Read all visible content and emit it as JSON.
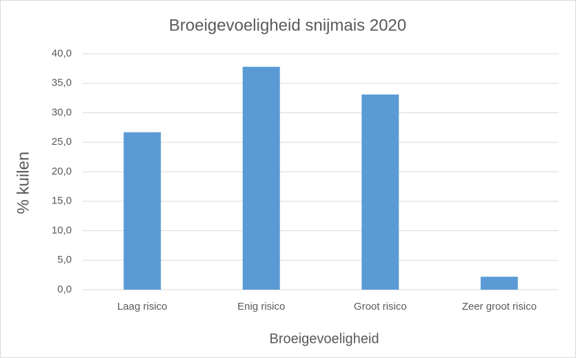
{
  "chart_data": {
    "type": "bar",
    "title": "Broeigevoeligheid snijmais 2020",
    "x_label": "Broeigevoeligheid",
    "y_label": "% kuilen",
    "categories": [
      "Laag risico",
      "Enig risico",
      "Groot risico",
      "Zeer groot risico"
    ],
    "values": [
      26.7,
      37.8,
      33.1,
      2.2
    ],
    "color": "#5b9bd5",
    "ylim": [
      0,
      40
    ],
    "yticks": [
      {
        "value": 0,
        "label": "0,0"
      },
      {
        "value": 5,
        "label": "5,0"
      },
      {
        "value": 10,
        "label": "10,0"
      },
      {
        "value": 15,
        "label": "15,0"
      },
      {
        "value": 20,
        "label": "20,0"
      },
      {
        "value": 25,
        "label": "25,0"
      },
      {
        "value": 30,
        "label": "30,0"
      },
      {
        "value": 35,
        "label": "35,0"
      },
      {
        "value": 40,
        "label": "40,0"
      }
    ],
    "grid": true
  }
}
